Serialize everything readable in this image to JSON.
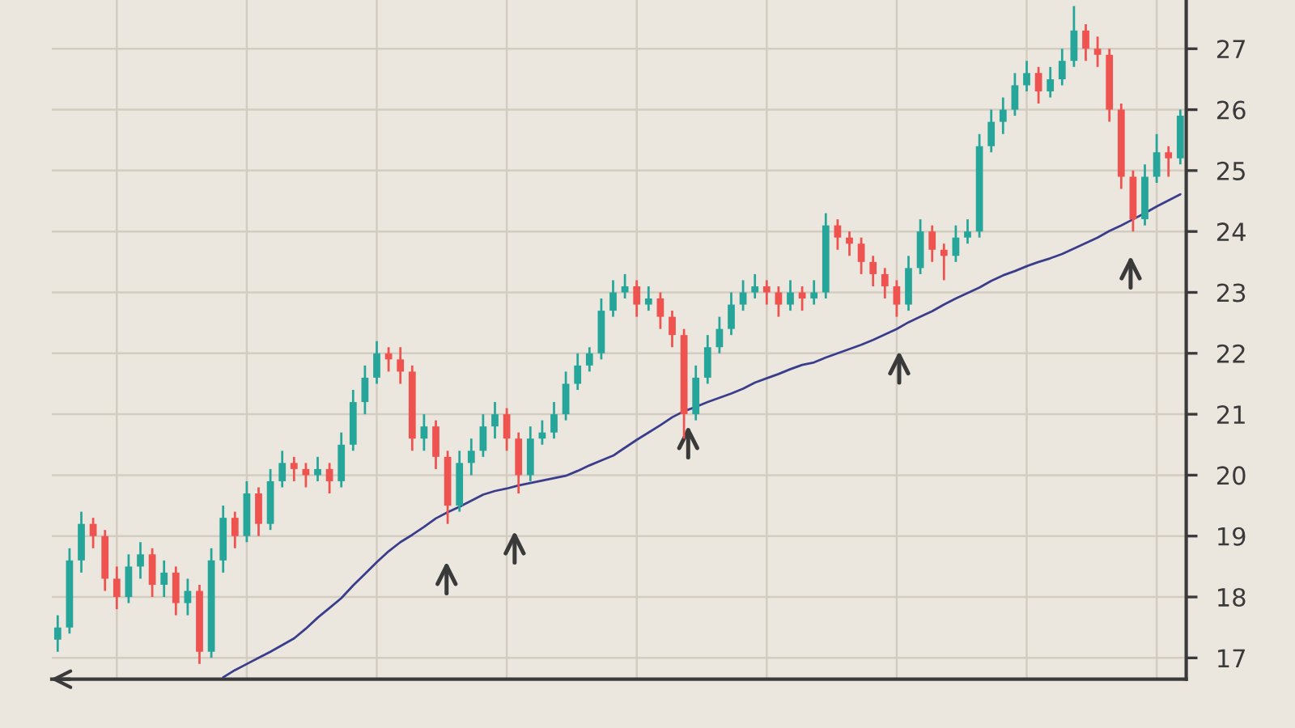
{
  "chart_data": {
    "type": "candlestick",
    "categories": [
      null,
      null,
      null,
      null,
      null,
      null,
      null,
      null,
      null,
      null,
      null,
      null,
      null,
      null,
      null,
      null,
      null,
      null,
      null,
      null,
      null,
      null,
      null,
      null,
      null,
      null,
      null,
      null,
      null,
      null,
      null,
      null,
      null,
      null,
      null,
      null,
      null,
      null,
      null,
      null,
      null,
      null,
      null,
      null,
      null,
      null,
      null,
      null,
      null,
      null,
      null,
      null,
      null,
      null,
      null,
      null,
      null,
      null,
      null,
      null,
      null,
      null,
      null,
      null,
      null,
      null,
      null,
      null,
      null,
      null,
      null,
      null,
      null,
      null,
      null,
      null,
      null,
      null,
      null,
      null,
      null,
      null,
      null,
      null,
      null,
      null,
      null,
      null,
      null,
      null,
      null,
      null,
      null,
      null,
      null,
      null
    ],
    "ohlc": [
      [
        17.3,
        17.7,
        17.1,
        17.5
      ],
      [
        17.5,
        18.8,
        17.4,
        18.6
      ],
      [
        18.6,
        19.4,
        18.4,
        19.2
      ],
      [
        19.2,
        19.3,
        18.8,
        19.0
      ],
      [
        19.0,
        19.1,
        18.1,
        18.3
      ],
      [
        18.3,
        18.5,
        17.8,
        18.0
      ],
      [
        18.0,
        18.7,
        17.9,
        18.5
      ],
      [
        18.5,
        18.9,
        18.3,
        18.7
      ],
      [
        18.7,
        18.8,
        18.0,
        18.2
      ],
      [
        18.2,
        18.6,
        18.0,
        18.4
      ],
      [
        18.4,
        18.5,
        17.7,
        17.9
      ],
      [
        17.9,
        18.3,
        17.7,
        18.1
      ],
      [
        18.1,
        18.2,
        16.9,
        17.1
      ],
      [
        17.1,
        18.8,
        17.0,
        18.6
      ],
      [
        18.6,
        19.5,
        18.4,
        19.3
      ],
      [
        19.3,
        19.4,
        18.8,
        19.0
      ],
      [
        19.0,
        19.9,
        18.9,
        19.7
      ],
      [
        19.7,
        19.8,
        19.0,
        19.2
      ],
      [
        19.2,
        20.1,
        19.1,
        19.9
      ],
      [
        19.9,
        20.4,
        19.8,
        20.2
      ],
      [
        20.2,
        20.3,
        19.9,
        20.1
      ],
      [
        20.1,
        20.2,
        19.8,
        20.0
      ],
      [
        20.0,
        20.3,
        19.9,
        20.1
      ],
      [
        20.1,
        20.2,
        19.7,
        19.9
      ],
      [
        19.9,
        20.7,
        19.8,
        20.5
      ],
      [
        20.5,
        21.4,
        20.4,
        21.2
      ],
      [
        21.2,
        21.8,
        21.0,
        21.6
      ],
      [
        21.6,
        22.2,
        21.5,
        22.0
      ],
      [
        22.0,
        22.1,
        21.7,
        21.9
      ],
      [
        21.9,
        22.1,
        21.5,
        21.7
      ],
      [
        21.7,
        21.8,
        20.4,
        20.6
      ],
      [
        20.6,
        21.0,
        20.4,
        20.8
      ],
      [
        20.8,
        20.9,
        20.1,
        20.3
      ],
      [
        20.3,
        20.4,
        19.2,
        19.5
      ],
      [
        19.5,
        20.4,
        19.4,
        20.2
      ],
      [
        20.2,
        20.6,
        20.0,
        20.4
      ],
      [
        20.4,
        21.0,
        20.3,
        20.8
      ],
      [
        20.8,
        21.2,
        20.6,
        21.0
      ],
      [
        21.0,
        21.1,
        20.4,
        20.6
      ],
      [
        20.6,
        20.7,
        19.7,
        20.0
      ],
      [
        20.0,
        20.8,
        19.9,
        20.6
      ],
      [
        20.6,
        20.9,
        20.5,
        20.7
      ],
      [
        20.7,
        21.2,
        20.6,
        21.0
      ],
      [
        21.0,
        21.7,
        20.9,
        21.5
      ],
      [
        21.5,
        22.0,
        21.4,
        21.8
      ],
      [
        21.8,
        22.1,
        21.7,
        22.0
      ],
      [
        22.0,
        22.9,
        21.9,
        22.7
      ],
      [
        22.7,
        23.2,
        22.6,
        23.0
      ],
      [
        23.0,
        23.3,
        22.9,
        23.1
      ],
      [
        23.1,
        23.2,
        22.6,
        22.8
      ],
      [
        22.8,
        23.1,
        22.7,
        22.9
      ],
      [
        22.9,
        23.0,
        22.4,
        22.6
      ],
      [
        22.6,
        22.7,
        22.1,
        22.3
      ],
      [
        22.3,
        22.4,
        20.6,
        21.0
      ],
      [
        21.0,
        21.8,
        20.9,
        21.6
      ],
      [
        21.6,
        22.3,
        21.5,
        22.1
      ],
      [
        22.1,
        22.6,
        22.0,
        22.4
      ],
      [
        22.4,
        23.0,
        22.3,
        22.8
      ],
      [
        22.8,
        23.2,
        22.7,
        23.0
      ],
      [
        23.0,
        23.3,
        22.9,
        23.1
      ],
      [
        23.1,
        23.2,
        22.8,
        23.0
      ],
      [
        23.0,
        23.1,
        22.6,
        22.8
      ],
      [
        22.8,
        23.2,
        22.7,
        23.0
      ],
      [
        23.0,
        23.1,
        22.7,
        22.9
      ],
      [
        22.9,
        23.2,
        22.8,
        23.0
      ],
      [
        23.0,
        24.3,
        22.9,
        24.1
      ],
      [
        24.1,
        24.2,
        23.7,
        23.9
      ],
      [
        23.9,
        24.0,
        23.6,
        23.8
      ],
      [
        23.8,
        23.9,
        23.3,
        23.5
      ],
      [
        23.5,
        23.6,
        23.1,
        23.3
      ],
      [
        23.3,
        23.4,
        22.9,
        23.1
      ],
      [
        23.1,
        23.2,
        22.6,
        22.8
      ],
      [
        22.8,
        23.6,
        22.7,
        23.4
      ],
      [
        23.4,
        24.2,
        23.3,
        24.0
      ],
      [
        24.0,
        24.1,
        23.5,
        23.7
      ],
      [
        23.7,
        23.8,
        23.2,
        23.6
      ],
      [
        23.6,
        24.1,
        23.5,
        23.9
      ],
      [
        23.9,
        24.2,
        23.8,
        24.0
      ],
      [
        24.0,
        25.6,
        23.9,
        25.4
      ],
      [
        25.4,
        26.0,
        25.3,
        25.8
      ],
      [
        25.8,
        26.2,
        25.6,
        26.0
      ],
      [
        26.0,
        26.6,
        25.9,
        26.4
      ],
      [
        26.4,
        26.8,
        26.3,
        26.6
      ],
      [
        26.6,
        26.7,
        26.1,
        26.3
      ],
      [
        26.3,
        26.7,
        26.2,
        26.5
      ],
      [
        26.5,
        27.0,
        26.4,
        26.8
      ],
      [
        26.8,
        27.7,
        26.7,
        27.3
      ],
      [
        27.3,
        27.4,
        26.8,
        27.0
      ],
      [
        27.0,
        27.2,
        26.7,
        26.9
      ],
      [
        26.9,
        27.0,
        25.8,
        26.0
      ],
      [
        26.0,
        26.1,
        24.7,
        24.9
      ],
      [
        24.9,
        25.0,
        24.0,
        24.2
      ],
      [
        24.2,
        25.1,
        24.1,
        24.9
      ],
      [
        24.9,
        25.6,
        24.8,
        25.3
      ],
      [
        25.3,
        25.4,
        24.9,
        25.2
      ],
      [
        25.2,
        26.0,
        25.1,
        25.9
      ]
    ],
    "colors": [
      "#26a69a",
      "#26a69a",
      "#26a69a",
      "#ef5350",
      "#ef5350",
      "#ef5350",
      "#26a69a",
      "#26a69a",
      "#ef5350",
      "#26a69a",
      "#ef5350",
      "#26a69a",
      "#ef5350",
      "#26a69a",
      "#26a69a",
      "#ef5350",
      "#26a69a",
      "#ef5350",
      "#26a69a",
      "#26a69a",
      "#ef5350",
      "#ef5350",
      "#26a69a",
      "#ef5350",
      "#26a69a",
      "#26a69a",
      "#26a69a",
      "#26a69a",
      "#ef5350",
      "#ef5350",
      "#ef5350",
      "#26a69a",
      "#ef5350",
      "#ef5350",
      "#26a69a",
      "#26a69a",
      "#26a69a",
      "#26a69a",
      "#ef5350",
      "#ef5350",
      "#26a69a",
      "#26a69a",
      "#26a69a",
      "#26a69a",
      "#26a69a",
      "#26a69a",
      "#26a69a",
      "#26a69a",
      "#26a69a",
      "#ef5350",
      "#26a69a",
      "#ef5350",
      "#ef5350",
      "#ef5350",
      "#26a69a",
      "#26a69a",
      "#26a69a",
      "#26a69a",
      "#26a69a",
      "#26a69a",
      "#ef5350",
      "#ef5350",
      "#26a69a",
      "#ef5350",
      "#26a69a",
      "#26a69a",
      "#ef5350",
      "#ef5350",
      "#ef5350",
      "#ef5350",
      "#ef5350",
      "#ef5350",
      "#26a69a",
      "#26a69a",
      "#ef5350",
      "#ef5350",
      "#26a69a",
      "#26a69a",
      "#26a69a",
      "#26a69a",
      "#26a69a",
      "#26a69a",
      "#26a69a",
      "#ef5350",
      "#26a69a",
      "#26a69a",
      "#26a69a",
      "#ef5350",
      "#ef5350",
      "#ef5350",
      "#ef5350",
      "#ef5350",
      "#26a69a",
      "#26a69a",
      "#ef5350",
      "#26a69a"
    ],
    "series": [
      {
        "type": "line",
        "color": "#3a3d8c",
        "values": [
          null,
          null,
          null,
          null,
          null,
          null,
          null,
          null,
          null,
          null,
          null,
          null,
          null,
          null,
          16.68,
          16.8,
          16.9,
          17.0,
          17.1,
          17.21,
          17.32,
          17.48,
          17.66,
          17.82,
          17.98,
          18.19,
          18.38,
          18.57,
          18.75,
          18.9,
          19.02,
          19.15,
          19.29,
          19.39,
          19.48,
          19.58,
          19.68,
          19.74,
          19.78,
          19.83,
          19.87,
          19.91,
          19.95,
          19.99,
          20.07,
          20.16,
          20.24,
          20.32,
          20.45,
          20.58,
          20.7,
          20.82,
          20.95,
          21.05,
          21.12,
          21.2,
          21.27,
          21.34,
          21.42,
          21.52,
          21.59,
          21.66,
          21.74,
          21.81,
          21.85,
          21.93,
          22.0,
          22.07,
          22.14,
          22.22,
          22.31,
          22.4,
          22.51,
          22.6,
          22.69,
          22.8,
          22.9,
          22.99,
          23.08,
          23.19,
          23.28,
          23.35,
          23.43,
          23.5,
          23.56,
          23.63,
          23.72,
          23.81,
          23.9,
          24.01,
          24.1,
          24.2,
          24.3,
          24.41,
          24.51,
          24.61
        ]
      }
    ],
    "ylim": [
      16.65,
      27.8
    ],
    "yticks": [
      17,
      18,
      19,
      20,
      21,
      22,
      23,
      24,
      25,
      26,
      27
    ],
    "grid": true,
    "tick_labels": "y"
  }
}
